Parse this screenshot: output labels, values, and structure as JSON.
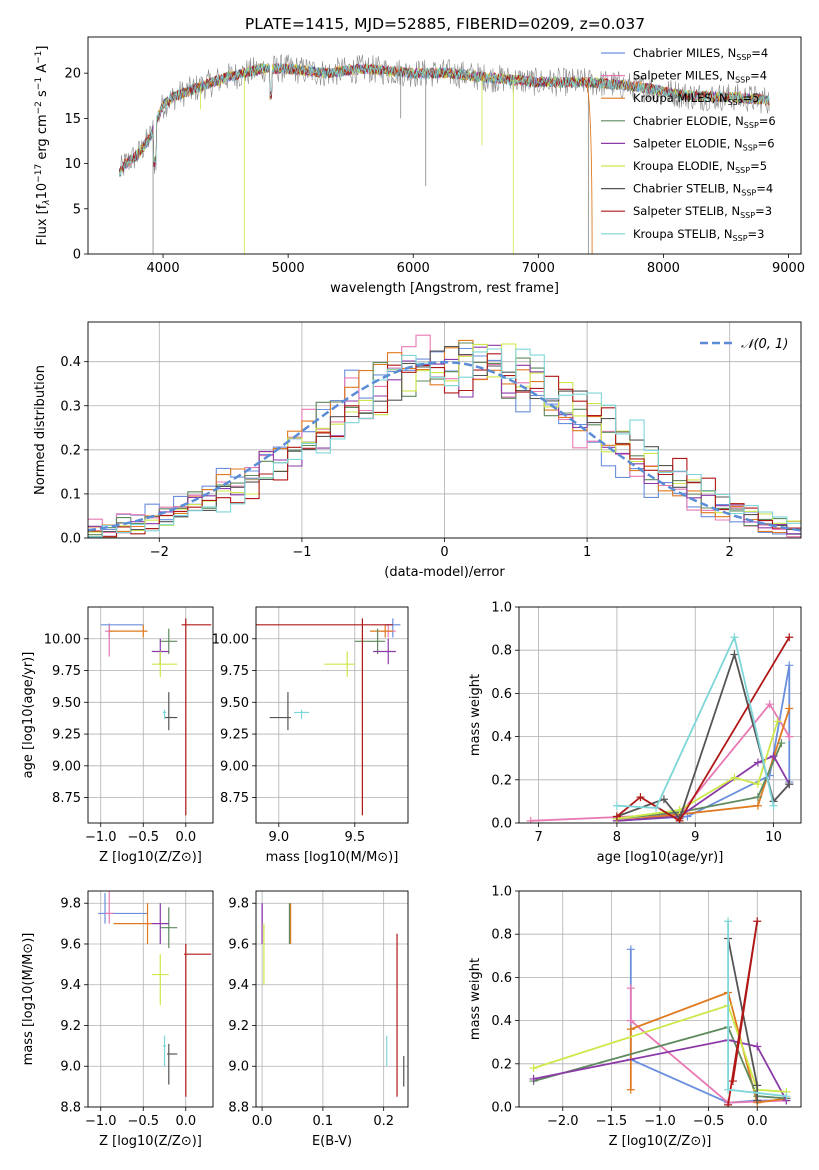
{
  "title": "PLATE=1415, MJD=52885, FIBERID=0209, z=0.037",
  "colors": {
    "chabrier_miles": "#6a8fdc",
    "salpeter_miles": "#e879b4",
    "kroupa_miles": "#e07a1f",
    "chabrier_elodie": "#5e8a5e",
    "salpeter_elodie": "#8b3aa8",
    "kroupa_elodie": "#cde84a",
    "chabrier_stelib": "#555555",
    "salpeter_stelib": "#b01818",
    "kroupa_stelib": "#7fd6d8",
    "data": "#888888",
    "gaussian": "#5b8cd6",
    "grid": "#b0b0b0"
  },
  "chart_data": [
    {
      "id": "spectrum",
      "type": "line",
      "xlabel": "wavelength [Angstrom, rest frame]",
      "ylabel": "Flux [f_λ10^{-17} erg cm^{-2} s^{-1} A^{-1}]",
      "xlim": [
        3400,
        9100
      ],
      "ylim": [
        0,
        24
      ],
      "xticks": [
        "4000",
        "5000",
        "6000",
        "7000",
        "8000",
        "9000"
      ],
      "yticks": [
        "0",
        "5",
        "10",
        "15",
        "20"
      ],
      "grid": false,
      "legend_position": "top-right",
      "legend": [
        {
          "label": "Chabrier MILES, N_SSP=4",
          "color_key": "chabrier_miles"
        },
        {
          "label": "Salpeter MILES, N_SSP=4",
          "color_key": "salpeter_miles"
        },
        {
          "label": "Kroupa MILES, N_SSP=5",
          "color_key": "kroupa_miles"
        },
        {
          "label": "Chabrier ELODIE, N_SSP=6",
          "color_key": "chabrier_elodie"
        },
        {
          "label": "Salpeter ELODIE, N_SSP=6",
          "color_key": "salpeter_elodie"
        },
        {
          "label": "Kroupa ELODIE, N_SSP=5",
          "color_key": "kroupa_elodie"
        },
        {
          "label": "Chabrier STELIB, N_SSP=4",
          "color_key": "chabrier_stelib"
        },
        {
          "label": "Salpeter STELIB, N_SSP=3",
          "color_key": "salpeter_stelib"
        },
        {
          "label": "Kroupa STELIB, N_SSP=3",
          "color_key": "kroupa_stelib"
        }
      ],
      "continuum": [
        [
          3650,
          9
        ],
        [
          3700,
          10
        ],
        [
          3800,
          11
        ],
        [
          3900,
          13
        ],
        [
          4000,
          16.5
        ],
        [
          4100,
          17.5
        ],
        [
          4300,
          18.5
        ],
        [
          4500,
          19.5
        ],
        [
          4800,
          20.5
        ],
        [
          5000,
          20.5
        ],
        [
          5300,
          20
        ],
        [
          5600,
          20.5
        ],
        [
          6000,
          20
        ],
        [
          6300,
          20
        ],
        [
          6600,
          19.5
        ],
        [
          7000,
          19
        ],
        [
          7400,
          19
        ],
        [
          7800,
          18.5
        ],
        [
          8200,
          17.5
        ],
        [
          8600,
          17.3
        ],
        [
          8850,
          17
        ]
      ],
      "spikes": [
        [
          3920,
          0
        ],
        [
          4650,
          0
        ],
        [
          6100,
          7.5
        ],
        [
          6800,
          0
        ],
        [
          7400,
          0
        ],
        [
          6550,
          12
        ],
        [
          5900,
          15
        ],
        [
          4300,
          16
        ]
      ]
    },
    {
      "id": "residuals",
      "type": "histogram",
      "xlabel": "(data-model)/error",
      "ylabel": "Normed distribution",
      "xlim": [
        -2.5,
        2.5
      ],
      "ylim": [
        0,
        0.49
      ],
      "xticks": [
        "−2",
        "−1",
        "0",
        "1",
        "2"
      ],
      "yticks": [
        "0.0",
        "0.1",
        "0.2",
        "0.3",
        "0.4"
      ],
      "grid": true,
      "legend_position": "top-right",
      "gaussian_label": "𝒩(0, 1)",
      "bin_width": 0.1
    },
    {
      "id": "age_vs_Z",
      "type": "scatter",
      "xlabel": "Z [log10(Z/Z⊙)]",
      "ylabel": "age  [log10(age/yr)]",
      "xlim": [
        -1.15,
        0.32
      ],
      "ylim": [
        8.55,
        10.25
      ],
      "xticks": [
        "−1.0",
        "−0.5",
        "0.0"
      ],
      "yticks": [
        "8.75",
        "9.00",
        "9.25",
        "9.50",
        "9.75",
        "10.00"
      ],
      "grid": true,
      "points": [
        {
          "c": "chabrier_miles",
          "x": -0.9,
          "y": 10.11,
          "xe": [
            0.1,
            0.4
          ],
          "ye": [
            0.1,
            0.01
          ]
        },
        {
          "c": "salpeter_miles",
          "x": -0.9,
          "y": 10.06,
          "xe": [
            0.05,
            0.05
          ],
          "ye": [
            0.2,
            0.05
          ]
        },
        {
          "c": "kroupa_miles",
          "x": -0.5,
          "y": 10.06,
          "xe": [
            0.4,
            0.05
          ],
          "ye": [
            0.05,
            0.05
          ]
        },
        {
          "c": "chabrier_elodie",
          "x": -0.2,
          "y": 9.98,
          "xe": [
            0.1,
            0.1
          ],
          "ye": [
            0.1,
            0.1
          ]
        },
        {
          "c": "salpeter_elodie",
          "x": -0.3,
          "y": 9.9,
          "xe": [
            0.1,
            0.1
          ],
          "ye": [
            0.1,
            0.1
          ]
        },
        {
          "c": "kroupa_elodie",
          "x": -0.3,
          "y": 9.8,
          "xe": [
            0.1,
            0.2
          ],
          "ye": [
            0.1,
            0.1
          ]
        },
        {
          "c": "chabrier_stelib",
          "x": -0.2,
          "y": 9.38,
          "xe": [
            0.05,
            0.1
          ],
          "ye": [
            0.1,
            0.2
          ]
        },
        {
          "c": "salpeter_stelib",
          "x": 0,
          "y": 10.11,
          "xe": [
            0.05,
            0.3
          ],
          "ye": [
            1.5,
            0.05
          ]
        },
        {
          "c": "kroupa_stelib",
          "x": -0.25,
          "y": 9.42,
          "xe": [
            0.02,
            0.02
          ],
          "ye": [
            0.05,
            0.02
          ]
        }
      ]
    },
    {
      "id": "age_vs_mass",
      "type": "scatter",
      "xlabel": "mass [log10(M/M⊙)]",
      "ylabel": "",
      "xlim": [
        8.85,
        9.85
      ],
      "ylim": [
        8.55,
        10.25
      ],
      "xticks": [
        "9.0",
        "9.5"
      ],
      "yticks": [
        "8.75",
        "9.00",
        "9.25",
        "9.50",
        "9.75",
        "10.00"
      ],
      "grid": true,
      "points": [
        {
          "c": "chabrier_miles",
          "x": 9.75,
          "y": 10.11,
          "xe": [
            0.05,
            0.05
          ],
          "ye": [
            0.1,
            0.05
          ]
        },
        {
          "c": "salpeter_miles",
          "x": 9.72,
          "y": 10.06,
          "xe": [
            0.05,
            0.05
          ],
          "ye": [
            0.05,
            0.05
          ]
        },
        {
          "c": "kroupa_miles",
          "x": 9.7,
          "y": 10.06,
          "xe": [
            0.1,
            0.05
          ],
          "ye": [
            0.05,
            0.05
          ]
        },
        {
          "c": "chabrier_elodie",
          "x": 9.65,
          "y": 9.98,
          "xe": [
            0.15,
            0.05
          ],
          "ye": [
            0.1,
            0.1
          ]
        },
        {
          "c": "salpeter_elodie",
          "x": 9.72,
          "y": 9.9,
          "xe": [
            0.1,
            0.05
          ],
          "ye": [
            0.1,
            0.1
          ]
        },
        {
          "c": "kroupa_elodie",
          "x": 9.45,
          "y": 9.8,
          "xe": [
            0.15,
            0.05
          ],
          "ye": [
            0.1,
            0.1
          ]
        },
        {
          "c": "chabrier_stelib",
          "x": 9.06,
          "y": 9.38,
          "xe": [
            0.12,
            0.02
          ],
          "ye": [
            0.1,
            0.2
          ]
        },
        {
          "c": "salpeter_stelib",
          "x": 9.55,
          "y": 10.11,
          "xe": [
            0.7,
            0.2
          ],
          "ye": [
            1.5,
            0.05
          ]
        },
        {
          "c": "kroupa_stelib",
          "x": 9.15,
          "y": 9.42,
          "xe": [
            0.05,
            0.05
          ],
          "ye": [
            0.05,
            0.02
          ]
        }
      ]
    },
    {
      "id": "weight_vs_age",
      "type": "line",
      "xlabel": "age  [log10(age/yr)]",
      "ylabel": "mass weight",
      "xlim": [
        6.75,
        10.35
      ],
      "ylim": [
        0,
        1
      ],
      "xticks": [
        "7",
        "8",
        "9",
        "10"
      ],
      "yticks": [
        "0.0",
        "0.2",
        "0.4",
        "0.6",
        "0.8",
        "1.0"
      ],
      "grid": true,
      "series": [
        {
          "c": "chabrier_miles",
          "x": [
            8.0,
            8.9,
            9.95,
            10.2,
            10.2
          ],
          "y": [
            0.01,
            0.03,
            0.22,
            0.73,
            0.19
          ]
        },
        {
          "c": "salpeter_miles",
          "x": [
            6.9,
            8.8,
            9.95,
            10.2
          ],
          "y": [
            0.01,
            0.04,
            0.55,
            0.4
          ]
        },
        {
          "c": "kroupa_miles",
          "x": [
            8.0,
            8.8,
            9.8,
            10.2
          ],
          "y": [
            0.01,
            0.04,
            0.08,
            0.53
          ]
        },
        {
          "c": "chabrier_elodie",
          "x": [
            8.0,
            8.8,
            9.8,
            10.1
          ],
          "y": [
            0.02,
            0.05,
            0.12,
            0.37
          ]
        },
        {
          "c": "salpeter_elodie",
          "x": [
            8.0,
            8.8,
            9.8,
            10.0,
            10.2
          ],
          "y": [
            0.01,
            0.03,
            0.28,
            0.31,
            0.18
          ]
        },
        {
          "c": "kroupa_elodie",
          "x": [
            8.0,
            8.8,
            9.5,
            9.8,
            10.05
          ],
          "y": [
            0.02,
            0.06,
            0.21,
            0.18,
            0.47
          ]
        },
        {
          "c": "chabrier_stelib",
          "x": [
            8.0,
            8.6,
            8.8,
            9.5,
            10.0,
            10.2
          ],
          "y": [
            0.03,
            0.11,
            0.02,
            0.78,
            0.1,
            0.18
          ]
        },
        {
          "c": "salpeter_stelib",
          "x": [
            8.0,
            8.3,
            8.8,
            10.2
          ],
          "y": [
            0.03,
            0.12,
            0.01,
            0.86
          ]
        },
        {
          "c": "kroupa_stelib",
          "x": [
            8.0,
            8.5,
            9.5,
            10.0
          ],
          "y": [
            0.08,
            0.07,
            0.86,
            0.08
          ]
        }
      ]
    },
    {
      "id": "mass_vs_Z",
      "type": "scatter",
      "xlabel": "Z [log10(Z/Z⊙)]",
      "ylabel": "mass [log10(M/M⊙)]",
      "xlim": [
        -1.15,
        0.32
      ],
      "ylim": [
        8.8,
        9.86
      ],
      "xticks": [
        "−1.0",
        "−0.5",
        "0.0"
      ],
      "yticks": [
        "8.8",
        "9.0",
        "9.2",
        "9.4",
        "9.6",
        "9.8"
      ],
      "grid": true,
      "points": [
        {
          "c": "chabrier_miles",
          "x": -0.95,
          "y": 9.75,
          "xe": [
            0.08,
            0.5
          ],
          "ye": [
            0.05,
            0.1
          ]
        },
        {
          "c": "salpeter_miles",
          "x": -0.9,
          "y": 9.75,
          "xe": [
            0.05,
            0.05
          ],
          "ye": [
            0.05,
            0.15
          ]
        },
        {
          "c": "kroupa_miles",
          "x": -0.45,
          "y": 9.7,
          "xe": [
            0.4,
            0.05
          ],
          "ye": [
            0.1,
            0.1
          ]
        },
        {
          "c": "chabrier_elodie",
          "x": -0.2,
          "y": 9.68,
          "xe": [
            0.1,
            0.1
          ],
          "ye": [
            0.1,
            0.1
          ]
        },
        {
          "c": "salpeter_elodie",
          "x": -0.3,
          "y": 9.7,
          "xe": [
            0.1,
            0.1
          ],
          "ye": [
            0.1,
            0.1
          ]
        },
        {
          "c": "kroupa_elodie",
          "x": -0.3,
          "y": 9.45,
          "xe": [
            0.1,
            0.1
          ],
          "ye": [
            0.15,
            0.1
          ]
        },
        {
          "c": "chabrier_stelib",
          "x": -0.2,
          "y": 9.06,
          "xe": [
            0.02,
            0.1
          ],
          "ye": [
            0.15,
            0.05
          ]
        },
        {
          "c": "salpeter_stelib",
          "x": 0.0,
          "y": 9.55,
          "xe": [
            0.02,
            0.3
          ],
          "ye": [
            0.7,
            0.05
          ]
        },
        {
          "c": "kroupa_stelib",
          "x": -0.25,
          "y": 9.1,
          "xe": [
            0.02,
            0.02
          ],
          "ye": [
            0.1,
            0.05
          ]
        }
      ]
    },
    {
      "id": "mass_vs_ebv",
      "type": "scatter",
      "xlabel": "E(B-V)",
      "ylabel": "",
      "xlim": [
        -0.01,
        0.24
      ],
      "ylim": [
        8.8,
        9.86
      ],
      "xticks": [
        "0.0",
        "0.1",
        "0.2"
      ],
      "yticks": [
        "8.8",
        "9.0",
        "9.2",
        "9.4",
        "9.6",
        "9.8"
      ],
      "grid": true,
      "points": [
        {
          "c": "chabrier_miles",
          "x": 0.0,
          "y": 9.75,
          "xe": [
            0,
            0
          ],
          "ye": [
            0.05,
            0.05
          ]
        },
        {
          "c": "salpeter_miles",
          "x": 0.0,
          "y": 9.75,
          "xe": [
            0,
            0
          ],
          "ye": [
            0.05,
            0.05
          ]
        },
        {
          "c": "kroupa_miles",
          "x": 0.047,
          "y": 9.7,
          "xe": [
            0,
            0
          ],
          "ye": [
            0.1,
            0.1
          ]
        },
        {
          "c": "chabrier_elodie",
          "x": 0.045,
          "y": 9.7,
          "xe": [
            0,
            0
          ],
          "ye": [
            0.1,
            0.1
          ]
        },
        {
          "c": "salpeter_elodie",
          "x": 0.0,
          "y": 9.7,
          "xe": [
            0,
            0
          ],
          "ye": [
            0.1,
            0.1
          ]
        },
        {
          "c": "kroupa_elodie",
          "x": 0.003,
          "y": 9.55,
          "xe": [
            0,
            0
          ],
          "ye": [
            0.15,
            0.15
          ]
        },
        {
          "c": "chabrier_stelib",
          "x": 0.233,
          "y": 9.0,
          "xe": [
            0,
            0
          ],
          "ye": [
            0.1,
            0.05
          ]
        },
        {
          "c": "salpeter_stelib",
          "x": 0.222,
          "y": 9.25,
          "xe": [
            0,
            0
          ],
          "ye": [
            0.4,
            0.4
          ]
        },
        {
          "c": "kroupa_stelib",
          "x": 0.205,
          "y": 9.1,
          "xe": [
            0,
            0
          ],
          "ye": [
            0.1,
            0.05
          ]
        }
      ]
    },
    {
      "id": "weight_vs_Z",
      "type": "line",
      "xlabel": "Z [log10(Z/Z⊙)]",
      "ylabel": "mass weight",
      "xlim": [
        -2.45,
        0.45
      ],
      "ylim": [
        0,
        1
      ],
      "xticks": [
        "−2.0",
        "−1.5",
        "−1.0",
        "−0.5",
        "0.0"
      ],
      "yticks": [
        "0.0",
        "0.2",
        "0.4",
        "0.6",
        "0.8",
        "1.0"
      ],
      "grid": true,
      "series": [
        {
          "c": "chabrier_miles",
          "x": [
            -1.3,
            -1.3,
            -0.3,
            0.0,
            0.3
          ],
          "y": [
            0.73,
            0.22,
            0.02,
            0.03,
            0.03
          ]
        },
        {
          "c": "salpeter_miles",
          "x": [
            -1.3,
            -1.3,
            -0.3,
            0.3
          ],
          "y": [
            0.55,
            0.4,
            0.02,
            0.03
          ]
        },
        {
          "c": "kroupa_miles",
          "x": [
            -1.3,
            -1.3,
            -0.3,
            0.0,
            0.3
          ],
          "y": [
            0.08,
            0.36,
            0.53,
            0.02,
            0.04
          ]
        },
        {
          "c": "chabrier_elodie",
          "x": [
            -2.3,
            -0.3,
            0.0,
            0.3
          ],
          "y": [
            0.12,
            0.37,
            0.05,
            0.04
          ]
        },
        {
          "c": "salpeter_elodie",
          "x": [
            -2.3,
            -0.3,
            0.0,
            0.3
          ],
          "y": [
            0.13,
            0.31,
            0.28,
            0.03
          ]
        },
        {
          "c": "kroupa_elodie",
          "x": [
            -2.3,
            -0.3,
            0.0,
            0.3
          ],
          "y": [
            0.18,
            0.47,
            0.08,
            0.07
          ]
        },
        {
          "c": "chabrier_stelib",
          "x": [
            -0.3,
            0.0,
            0.0
          ],
          "y": [
            0.78,
            0.1,
            0.03
          ]
        },
        {
          "c": "salpeter_stelib",
          "x": [
            -0.3,
            0.0,
            -0.25
          ],
          "y": [
            0.01,
            0.86,
            0.12
          ]
        },
        {
          "c": "kroupa_stelib",
          "x": [
            -0.3,
            -0.3,
            0.3
          ],
          "y": [
            0.86,
            0.08,
            0.05
          ]
        }
      ]
    }
  ]
}
